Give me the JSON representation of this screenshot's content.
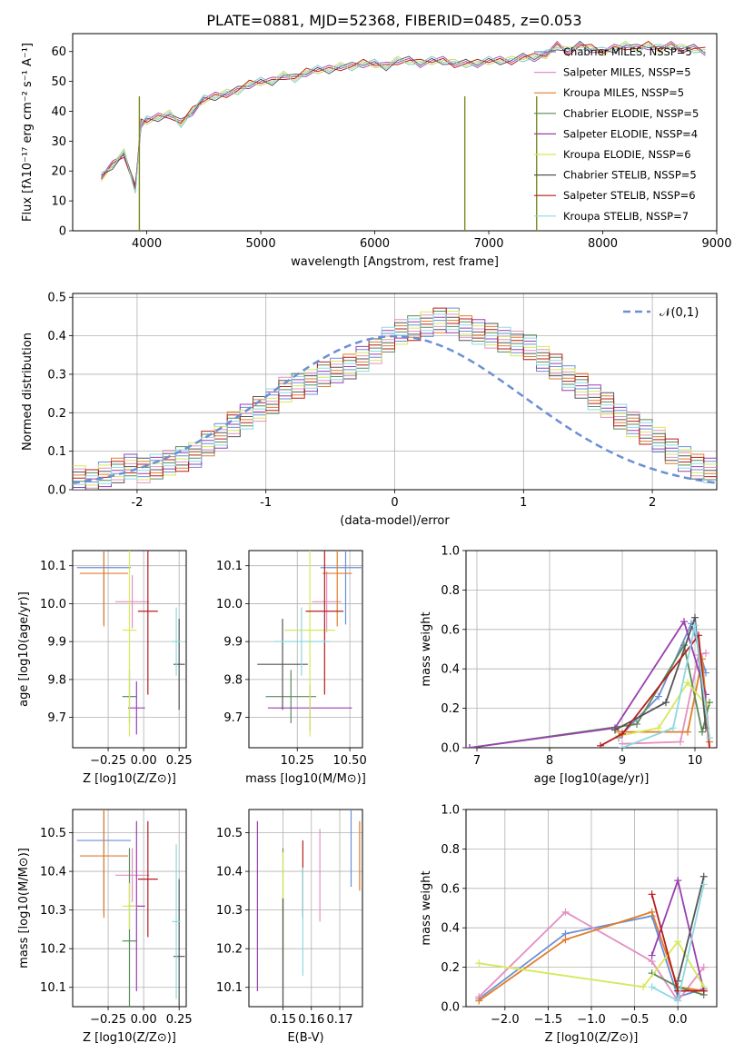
{
  "page_title": "PLATE=0881, MJD=52368, FIBERID=0485, z=0.053",
  "colors": [
    "#6b8fd6",
    "#e58fc2",
    "#e07d2a",
    "#5a8a5a",
    "#9a3fb0",
    "#d6e85a",
    "#555555",
    "#b81c1c",
    "#8fd8e0"
  ],
  "chart_data": [
    {
      "type": "line",
      "title": "PLATE=0881, MJD=52368, FIBERID=0485, z=0.053",
      "xlabel": "wavelength [Angstrom, rest frame]",
      "ylabel": "Flux [fλ10⁻¹⁷ erg cm⁻² s⁻¹ A⁻¹]",
      "xlim": [
        3350,
        9000
      ],
      "ylim": [
        0,
        66
      ],
      "xticks": [
        4000,
        5000,
        6000,
        7000,
        8000,
        9000
      ],
      "yticks": [
        0,
        10,
        20,
        30,
        40,
        50,
        60
      ],
      "legend": [
        "Chabrier MILES, NSSP=5",
        "Salpeter MILES, NSSP=5",
        "Kroupa MILES, NSSP=5",
        "Chabrier ELODIE, NSSP=5",
        "Salpeter ELODIE, NSSP=4",
        "Kroupa ELODIE, NSSP=6",
        "Chabrier STELIB, NSSP=5",
        "Salpeter STELIB, NSSP=6",
        "Kroupa STELIB, NSSP=7"
      ],
      "legend_location": "right",
      "spectrum": {
        "x": [
          3600,
          3700,
          3800,
          3900,
          3950,
          4000,
          4100,
          4200,
          4300,
          4400,
          4500,
          4600,
          4700,
          4800,
          4900,
          5000,
          5100,
          5200,
          5300,
          5400,
          5500,
          5600,
          5700,
          5800,
          5900,
          6000,
          6100,
          6200,
          6300,
          6400,
          6500,
          6600,
          6700,
          6800,
          6900,
          7000,
          7100,
          7200,
          7300,
          7400,
          7500,
          7600,
          7700,
          7800,
          7900,
          8000,
          8100,
          8200,
          8300,
          8400,
          8500,
          8600,
          8700,
          8800,
          8900
        ],
        "y": [
          18,
          22,
          26,
          14,
          36,
          37,
          38,
          39,
          36,
          40,
          44,
          45,
          46,
          47,
          49,
          50,
          50,
          52,
          51,
          53,
          54,
          54,
          55,
          55,
          56,
          56,
          55,
          57,
          57,
          56,
          57,
          57,
          56,
          56,
          56,
          57,
          57,
          57,
          58,
          58,
          59,
          62,
          60,
          62,
          61,
          60,
          61,
          62,
          61,
          62,
          61,
          62,
          61,
          61,
          60
        ]
      }
    },
    {
      "type": "bar",
      "title": "",
      "xlabel": "(data-model)/error",
      "ylabel": "Normed distribution",
      "xlim": [
        -2.5,
        2.5
      ],
      "ylim": [
        0,
        0.51
      ],
      "xticks": [
        -2,
        -1,
        0,
        1,
        2
      ],
      "yticks": [
        0.0,
        0.1,
        0.2,
        0.3,
        0.4,
        0.5
      ],
      "legend": [
        "𝒩(0,1)"
      ],
      "bin_edges_start": -2.5,
      "bin_width": 0.1,
      "histogram": [
        0.03,
        0.02,
        0.04,
        0.05,
        0.06,
        0.05,
        0.06,
        0.07,
        0.08,
        0.09,
        0.12,
        0.14,
        0.17,
        0.19,
        0.21,
        0.23,
        0.26,
        0.27,
        0.28,
        0.3,
        0.31,
        0.32,
        0.34,
        0.36,
        0.39,
        0.41,
        0.42,
        0.43,
        0.44,
        0.44,
        0.42,
        0.41,
        0.4,
        0.39,
        0.38,
        0.37,
        0.34,
        0.32,
        0.29,
        0.27,
        0.24,
        0.22,
        0.19,
        0.17,
        0.15,
        0.13,
        0.1,
        0.08,
        0.06,
        0.05
      ]
    },
    {
      "type": "scatter",
      "xlabel": "Z [log10(Z/Z⊙)]",
      "ylabel": "age  [log10(age/yr)]",
      "xlim": [
        -0.5,
        0.3
      ],
      "ylim": [
        9.62,
        10.14
      ],
      "xticks": [
        -0.25,
        0.0,
        0.25
      ],
      "xtick_labels": [
        "−0.25",
        "0.00",
        "0.25"
      ],
      "yticks": [
        9.7,
        9.8,
        9.9,
        10.0,
        10.1
      ],
      "points": [
        {
          "x": -0.28,
          "y": 10.095,
          "xerr": 0.19,
          "yerr": 0.15
        },
        {
          "x": -0.08,
          "y": 10.005,
          "xerr": 0.12,
          "yerr": 0.07
        },
        {
          "x": -0.28,
          "y": 10.08,
          "xerr": 0.17,
          "yerr": 0.14
        },
        {
          "x": -0.1,
          "y": 9.755,
          "xerr": 0.05,
          "yerr": 0.07
        },
        {
          "x": -0.05,
          "y": 9.725,
          "xerr": 0.06,
          "yerr": 0.07
        },
        {
          "x": -0.1,
          "y": 9.93,
          "xerr": 0.05,
          "yerr": 0.28
        },
        {
          "x": 0.25,
          "y": 9.84,
          "xerr": 0.04,
          "yerr": 0.12
        },
        {
          "x": 0.03,
          "y": 9.98,
          "xerr": 0.07,
          "yerr": 0.22
        },
        {
          "x": 0.23,
          "y": 9.9,
          "xerr": 0.03,
          "yerr": 0.09
        }
      ]
    },
    {
      "type": "scatter",
      "xlabel": "mass [log10(M/M⊙)]",
      "ylabel": "",
      "xlim": [
        10.02,
        10.56
      ],
      "ylim": [
        9.62,
        10.14
      ],
      "xticks": [
        10.25,
        10.5
      ],
      "xtick_labels": [
        "10.25",
        "10.50"
      ],
      "yticks": [
        9.7,
        9.8,
        9.9,
        10.0,
        10.1
      ],
      "points": [
        {
          "x": 10.48,
          "y": 10.095,
          "xerr": 0.12,
          "yerr": 0.15
        },
        {
          "x": 10.39,
          "y": 10.005,
          "xerr": 0.07,
          "yerr": 0.08
        },
        {
          "x": 10.44,
          "y": 10.08,
          "xerr": 0.07,
          "yerr": 0.14
        },
        {
          "x": 10.22,
          "y": 9.755,
          "xerr": 0.12,
          "yerr": 0.07
        },
        {
          "x": 10.31,
          "y": 9.725,
          "xerr": 0.2,
          "yerr": 0.06
        },
        {
          "x": 10.31,
          "y": 9.93,
          "xerr": 0.12,
          "yerr": 0.28
        },
        {
          "x": 10.18,
          "y": 9.84,
          "xerr": 0.12,
          "yerr": 0.12
        },
        {
          "x": 10.38,
          "y": 9.98,
          "xerr": 0.09,
          "yerr": 0.22
        },
        {
          "x": 10.27,
          "y": 9.9,
          "xerr": 0.13,
          "yerr": 0.09
        }
      ]
    },
    {
      "type": "line",
      "xlabel": "age  [log10(age/yr)]",
      "ylabel": "mass weight",
      "xlim": [
        6.85,
        10.3
      ],
      "ylim": [
        0,
        1.0
      ],
      "xticks": [
        7,
        8,
        9,
        10
      ],
      "yticks": [
        0.0,
        0.2,
        0.4,
        0.6,
        0.8,
        1.0
      ],
      "series": [
        {
          "x": [
            8.95,
            9.5,
            9.95,
            10.15
          ],
          "y": [
            0.05,
            0.26,
            0.63,
            0.38
          ]
        },
        {
          "x": [
            9.0,
            9.8,
            10.05,
            10.15
          ],
          "y": [
            0.02,
            0.03,
            0.47,
            0.48
          ]
        },
        {
          "x": [
            8.95,
            9.9,
            10.1,
            10.2
          ],
          "y": [
            0.08,
            0.08,
            0.45,
            0.03
          ]
        },
        {
          "x": [
            6.9,
            9.2,
            9.85,
            10.1,
            10.2
          ],
          "y": [
            0.0,
            0.12,
            0.52,
            0.08,
            0.23
          ]
        },
        {
          "x": [
            6.9,
            8.9,
            9.85,
            10.15
          ],
          "y": [
            0.0,
            0.1,
            0.64,
            0.27
          ]
        },
        {
          "x": [
            8.95,
            9.5,
            9.9,
            10.15
          ],
          "y": [
            0.06,
            0.1,
            0.33,
            0.22
          ]
        },
        {
          "x": [
            8.9,
            9.6,
            10.0,
            10.15
          ],
          "y": [
            0.09,
            0.23,
            0.66,
            0.1
          ]
        },
        {
          "x": [
            8.7,
            9.0,
            10.05,
            10.2
          ],
          "y": [
            0.01,
            0.07,
            0.57,
            0.0
          ]
        },
        {
          "x": [
            9.0,
            9.7,
            10.0,
            10.2
          ],
          "y": [
            0.0,
            0.1,
            0.62,
            0.05
          ]
        }
      ]
    },
    {
      "type": "scatter",
      "xlabel": "Z [log10(Z/Z⊙)]",
      "ylabel": "mass [log10(M/M⊙)]",
      "xlim": [
        -0.5,
        0.3
      ],
      "ylim": [
        10.05,
        10.56
      ],
      "xticks": [
        -0.25,
        0.0,
        0.25
      ],
      "xtick_labels": [
        "−0.25",
        "0.00",
        "0.25"
      ],
      "yticks": [
        10.1,
        10.2,
        10.3,
        10.4,
        10.5
      ],
      "points": [
        {
          "x": -0.28,
          "y": 10.48,
          "xerr": 0.19,
          "yerr": 0.19
        },
        {
          "x": -0.08,
          "y": 10.39,
          "xerr": 0.12,
          "yerr": 0.07
        },
        {
          "x": -0.28,
          "y": 10.44,
          "xerr": 0.17,
          "yerr": 0.16
        },
        {
          "x": -0.1,
          "y": 10.22,
          "xerr": 0.05,
          "yerr": 0.24
        },
        {
          "x": -0.05,
          "y": 10.31,
          "xerr": 0.06,
          "yerr": 0.22
        },
        {
          "x": -0.1,
          "y": 10.31,
          "xerr": 0.05,
          "yerr": 0.06
        },
        {
          "x": 0.25,
          "y": 10.18,
          "xerr": 0.04,
          "yerr": 0.2
        },
        {
          "x": 0.03,
          "y": 10.38,
          "xerr": 0.07,
          "yerr": 0.15
        },
        {
          "x": 0.23,
          "y": 10.27,
          "xerr": 0.03,
          "yerr": 0.2
        }
      ]
    },
    {
      "type": "scatter",
      "xlabel": "E(B-V)",
      "ylabel": "",
      "xlim": [
        0.138,
        0.178
      ],
      "ylim": [
        10.05,
        10.56
      ],
      "xticks": [
        0.15,
        0.16,
        0.17
      ],
      "xtick_labels": [
        "0.15",
        "0.16",
        "0.17"
      ],
      "yticks": [
        10.1,
        10.2,
        10.3,
        10.4,
        10.5
      ],
      "points": [
        {
          "x": 0.174,
          "y": 10.48,
          "yerr": 0.12
        },
        {
          "x": 0.163,
          "y": 10.39,
          "yerr": 0.12
        },
        {
          "x": 0.177,
          "y": 10.44,
          "yerr": 0.09
        },
        {
          "x": 0.15,
          "y": 10.22,
          "yerr": 0.24
        },
        {
          "x": 0.141,
          "y": 10.31,
          "yerr": 0.22
        },
        {
          "x": 0.15,
          "y": 10.31,
          "yerr": 0.14
        },
        {
          "x": 0.15,
          "y": 10.18,
          "yerr": 0.15
        },
        {
          "x": 0.157,
          "y": 10.38,
          "yerr": 0.1
        },
        {
          "x": 0.157,
          "y": 10.27,
          "yerr": 0.14
        }
      ]
    },
    {
      "type": "line",
      "xlabel": "Z [log10(Z/Z⊙)]",
      "ylabel": "mass weight",
      "xlim": [
        -2.45,
        0.45
      ],
      "ylim": [
        0,
        1.0
      ],
      "xticks": [
        -2.0,
        -1.5,
        -1.0,
        -0.5,
        0.0
      ],
      "xtick_labels": [
        "−2.0",
        "−1.5",
        "−1.0",
        "−0.5",
        "0.0"
      ],
      "yticks": [
        0.0,
        0.2,
        0.4,
        0.6,
        0.8,
        1.0
      ],
      "series": [
        {
          "x": [
            -2.3,
            -1.3,
            -0.3,
            0.0,
            0.3
          ],
          "y": [
            0.04,
            0.37,
            0.46,
            0.05,
            0.09
          ]
        },
        {
          "x": [
            -2.3,
            -1.3,
            -0.3,
            0.0,
            0.3
          ],
          "y": [
            0.05,
            0.48,
            0.23,
            0.03,
            0.2
          ]
        },
        {
          "x": [
            -2.3,
            -1.3,
            -0.3,
            0.0,
            0.3
          ],
          "y": [
            0.03,
            0.34,
            0.48,
            0.1,
            0.08
          ]
        },
        {
          "x": [
            -0.3,
            0.0,
            0.3
          ],
          "y": [
            0.17,
            0.1,
            0.06
          ]
        },
        {
          "x": [
            -0.3,
            0.0,
            0.3
          ],
          "y": [
            0.26,
            0.64,
            0.08
          ]
        },
        {
          "x": [
            -2.3,
            -0.4,
            0.0,
            0.3
          ],
          "y": [
            0.22,
            0.1,
            0.33,
            0.1
          ]
        },
        {
          "x": [
            0.0,
            0.3
          ],
          "y": [
            0.13,
            0.66
          ]
        },
        {
          "x": [
            -0.3,
            0.0,
            0.3
          ],
          "y": [
            0.57,
            0.08,
            0.08
          ]
        },
        {
          "x": [
            -0.3,
            0.0,
            0.3
          ],
          "y": [
            0.1,
            0.03,
            0.62
          ]
        }
      ]
    }
  ]
}
